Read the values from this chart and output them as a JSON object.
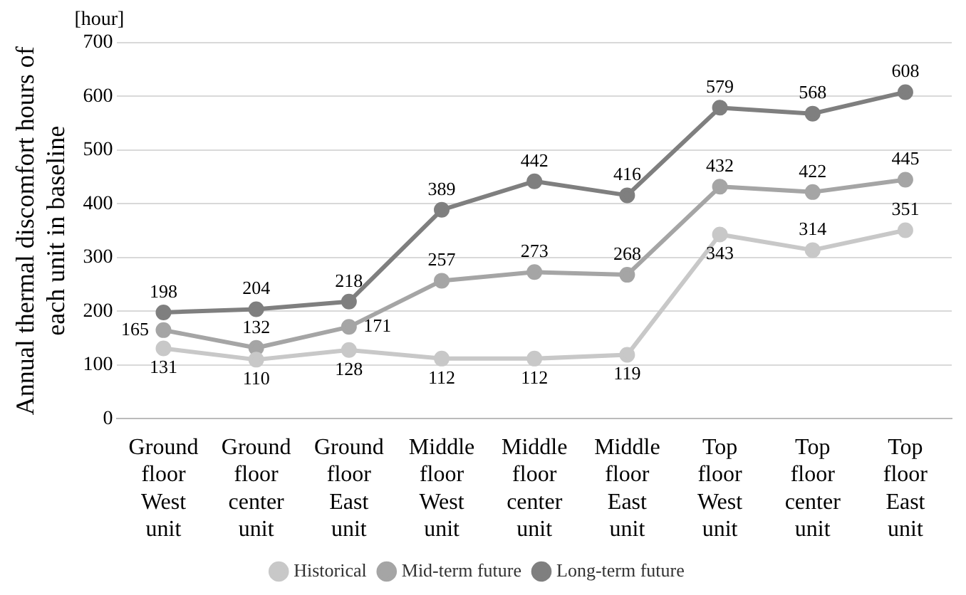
{
  "chart_data": {
    "type": "line",
    "ylabel": "Annual thermal discomfort hours of each unit in baseline",
    "annotations": [
      "[hour]"
    ],
    "categories": [
      "Ground floor West unit",
      "Ground floor center unit",
      "Ground floor East unit",
      "Middle floor West unit",
      "Middle floor center unit",
      "Middle floor East unit",
      "Top floor West unit",
      "Top floor center unit",
      "Top floor East unit"
    ],
    "series": [
      {
        "name": "Historical",
        "color": "#c8c8c8",
        "values": [
          131,
          110,
          128,
          112,
          112,
          119,
          343,
          314,
          351
        ]
      },
      {
        "name": "Mid-term future",
        "color": "#a5a5a5",
        "values": [
          165,
          132,
          171,
          257,
          273,
          268,
          432,
          422,
          445
        ]
      },
      {
        "name": "Long-term future",
        "color": "#7f7f7f",
        "values": [
          198,
          204,
          218,
          389,
          442,
          416,
          579,
          568,
          608
        ]
      }
    ],
    "ylim": [
      0,
      700
    ],
    "yticks": [
      0,
      100,
      200,
      300,
      400,
      500,
      600,
      700
    ],
    "grid": "y",
    "legend": "bottom",
    "marker": "circle",
    "line_style": "solid",
    "data_labels": true
  }
}
